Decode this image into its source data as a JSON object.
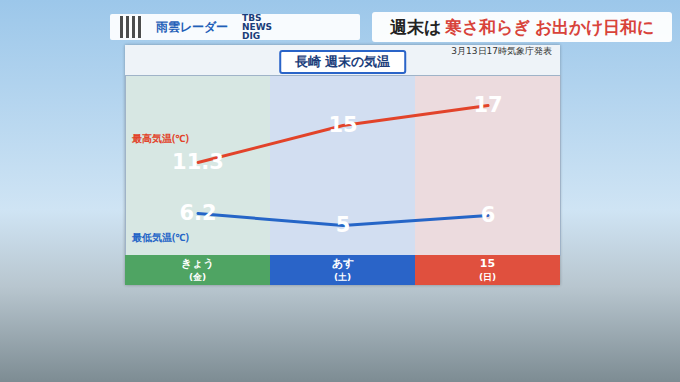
{
  "header": {
    "left": "雨雲レーダー",
    "logo": "TBS NEWS DIG",
    "banner": "週末は 寒さ和らぎ お出かけ日和に"
  },
  "chart_data": {
    "type": "line",
    "title": "長崎 週末の気温",
    "subtitle": "3月13日17時気象庁発表",
    "categories": [
      "きょう",
      "あす",
      "15"
    ],
    "sublabels": [
      "(金)",
      "(土)",
      "(日)"
    ],
    "colors": [
      "#4fa463",
      "#2a64c8",
      "#e0503e"
    ],
    "series": [
      {
        "name": "最高気温(℃)",
        "color": "#e2432a",
        "values": [
          11.3,
          15,
          17
        ]
      },
      {
        "name": "最低気温(℃)",
        "color": "#2565c7",
        "values": [
          6.2,
          5,
          6
        ]
      }
    ],
    "ylim": [
      2,
      20
    ],
    "data_labels": true,
    "tick_labels": false,
    "grid": false,
    "marker": "square"
  }
}
